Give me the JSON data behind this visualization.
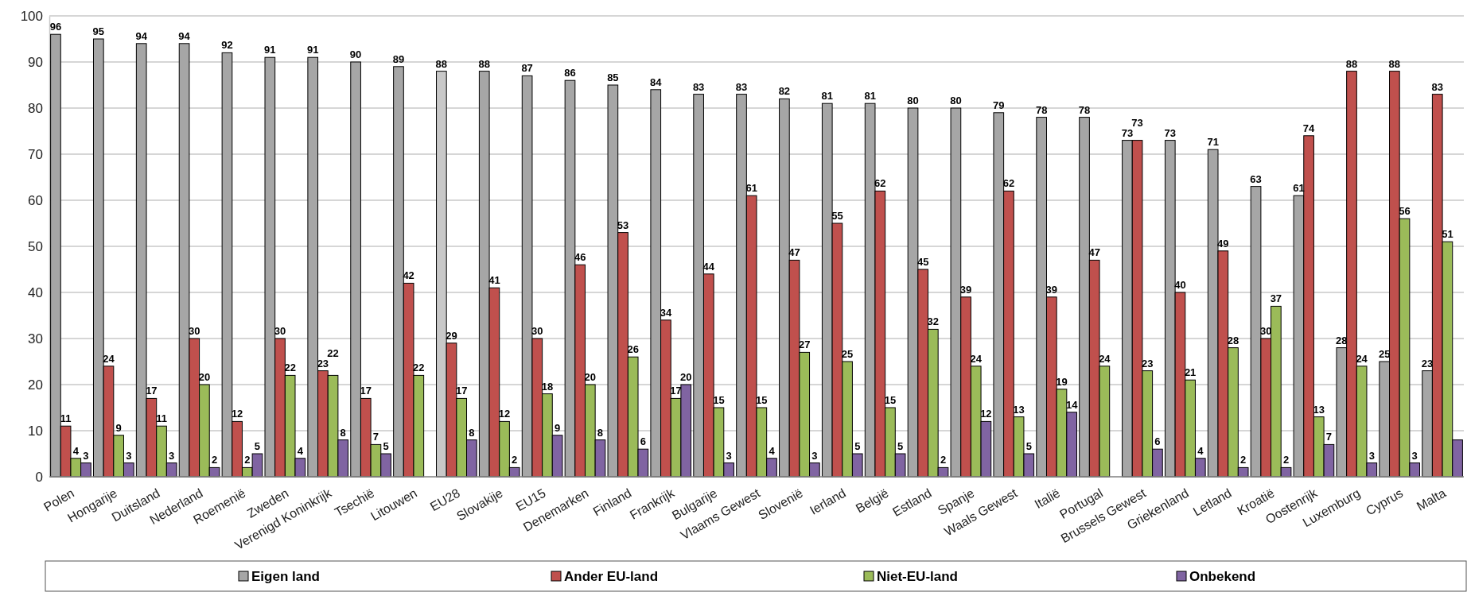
{
  "chart_data": {
    "type": "bar",
    "categories": [
      "Polen",
      "Hongarije",
      "Duitsland",
      "Nederland",
      "Roemenië",
      "Zweden",
      "Verenigd Koninkrijk",
      "Tsechië",
      "Litouwen",
      "EU28",
      "Slovakije",
      "EU15",
      "Denemarken",
      "Finland",
      "Frankrijk",
      "Bulgarije",
      "Vlaams Gewest",
      "Slovenië",
      "Ierland",
      "België",
      "Estland",
      "Spanje",
      "Waals Gewest",
      "Italië",
      "Portugal",
      "Brussels Gewest",
      "Griekenland",
      "Letland",
      "Kroatië",
      "Oostenrijk",
      "Luxemburg",
      "Cyprus",
      "Malta"
    ],
    "series": [
      {
        "name": "Eigen land",
        "color": "#a6a6a6",
        "colors": [
          "#a6a6a6",
          "#a6a6a6",
          "#a6a6a6",
          "#a6a6a6",
          "#a6a6a6",
          "#a6a6a6",
          "#a6a6a6",
          "#a6a6a6",
          "#a6a6a6",
          "#c8c8c8",
          "#a6a6a6",
          "#a6a6a6",
          "#a6a6a6",
          "#a6a6a6",
          "#a6a6a6",
          "#a6a6a6",
          "#a6a6a6",
          "#a6a6a6",
          "#a6a6a6",
          "#a6a6a6",
          "#a6a6a6",
          "#a6a6a6",
          "#a6a6a6",
          "#a6a6a6",
          "#a6a6a6",
          "#a6a6a6",
          "#a6a6a6",
          "#a6a6a6",
          "#a6a6a6",
          "#a6a6a6",
          "#a6a6a6",
          "#a6a6a6",
          "#a6a6a6"
        ],
        "values": [
          96,
          95,
          94,
          94,
          92,
          91,
          91,
          90,
          89,
          88,
          88,
          87,
          86,
          85,
          84,
          83,
          83,
          82,
          81,
          81,
          80,
          80,
          79,
          78,
          78,
          73,
          73,
          71,
          63,
          61,
          28,
          25,
          23
        ],
        "value_labels": [
          "96",
          "95",
          "94",
          "94",
          "92",
          "91",
          "91",
          "90",
          "89",
          "88",
          "88",
          "87",
          "86",
          "85",
          "84",
          "83",
          "83",
          "82",
          "81",
          "81",
          "80",
          "80",
          "79",
          "78",
          "78",
          "73",
          "73",
          "71",
          "63",
          "61",
          "28",
          "25",
          "23"
        ]
      },
      {
        "name": "Ander EU-land",
        "color": "#c0504d",
        "values": [
          11,
          24,
          17,
          30,
          12,
          30,
          23,
          17,
          42,
          29,
          41,
          30,
          46,
          53,
          34,
          44,
          61,
          47,
          55,
          62,
          45,
          39,
          62,
          39,
          47,
          73,
          40,
          49,
          30,
          74,
          88,
          88,
          83
        ],
        "value_labels": [
          "11",
          "24",
          "17",
          "30",
          "12",
          "30",
          "23",
          "17",
          "42",
          "29",
          "41",
          "30",
          "46",
          "53",
          "34",
          "44",
          "61",
          "47",
          "55",
          "62",
          "45",
          "39",
          "62",
          "39",
          "47",
          "73",
          "40",
          "49",
          "30",
          "74",
          "88",
          "88",
          "83"
        ]
      },
      {
        "name": "Niet-EU-land",
        "color": "#9bbb59",
        "values": [
          4,
          9,
          11,
          20,
          2,
          22,
          22,
          7,
          22,
          17,
          12,
          18,
          20,
          26,
          17,
          15,
          15,
          27,
          25,
          15,
          32,
          24,
          13,
          19,
          24,
          23,
          21,
          28,
          37,
          13,
          24,
          56,
          51
        ],
        "value_labels": [
          "4",
          "9",
          "11",
          "20",
          "2",
          "22",
          "22",
          "7",
          "22",
          "17",
          "12",
          "18",
          "20",
          "26",
          "17",
          "15",
          "15",
          "27",
          "25",
          "15",
          "32",
          "24",
          "13",
          "19",
          "24",
          "23",
          "21",
          "28",
          "37",
          "13",
          "24",
          "56",
          "51"
        ]
      },
      {
        "name": "Onbekend",
        "color": "#8064a2",
        "values": [
          3,
          3,
          3,
          2,
          5,
          4,
          8,
          5,
          null,
          8,
          2,
          9,
          8,
          6,
          20,
          3,
          4,
          3,
          5,
          5,
          2,
          12,
          5,
          14,
          null,
          6,
          4,
          2,
          2,
          7,
          3,
          3,
          8
        ],
        "value_labels": [
          "3",
          "3",
          "3",
          "2",
          "5",
          "4",
          "8",
          "5",
          null,
          "8",
          "2",
          "9",
          "8",
          "6",
          "20",
          "3",
          "4",
          "3",
          "5",
          "5",
          "2",
          "12",
          "5",
          "14",
          null,
          "6",
          "4",
          "2",
          "2",
          "7",
          "3",
          "3",
          null
        ]
      }
    ],
    "ylim": [
      0,
      100
    ],
    "yticks": [
      0,
      10,
      20,
      30,
      40,
      50,
      60,
      70,
      80,
      90,
      100
    ],
    "grid": true,
    "legend": "bottom"
  }
}
